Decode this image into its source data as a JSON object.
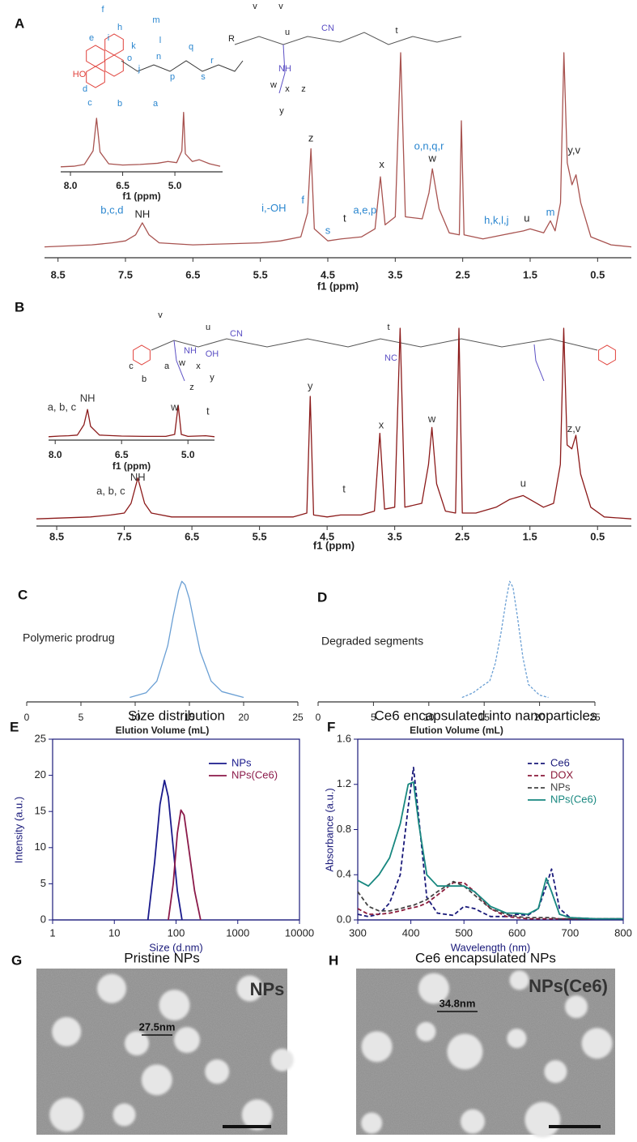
{
  "chart_data": [
    {
      "type": "line",
      "panel_label": "A",
      "xlabel": "f1 (ppm)",
      "color": "#a85350",
      "xlim": [
        8.7,
        0.0
      ],
      "xticks": [
        8.5,
        7.5,
        6.5,
        5.5,
        4.5,
        3.5,
        2.5,
        1.5,
        0.5
      ],
      "ylim": [
        0,
        100
      ],
      "x": [
        8.7,
        8.0,
        7.7,
        7.5,
        7.35,
        7.25,
        7.15,
        7.0,
        6.5,
        5.5,
        5.2,
        4.9,
        4.8,
        4.75,
        4.7,
        4.5,
        4.3,
        4.0,
        3.8,
        3.72,
        3.65,
        3.5,
        3.42,
        3.35,
        3.1,
        3.0,
        2.95,
        2.85,
        2.7,
        2.55,
        2.52,
        2.48,
        2.2,
        1.9,
        1.6,
        1.5,
        1.3,
        1.2,
        1.13,
        1.05,
        1.0,
        0.95,
        0.88,
        0.82,
        0.75,
        0.6,
        0.3,
        0.0
      ],
      "values": [
        3,
        4,
        5,
        6,
        9,
        15,
        9,
        5,
        4,
        5,
        6,
        8,
        20,
        52,
        12,
        6,
        7,
        8,
        12,
        38,
        14,
        18,
        100,
        18,
        17,
        30,
        42,
        22,
        10,
        9,
        66,
        9,
        7,
        9,
        11,
        12,
        10,
        16,
        11,
        25,
        100,
        45,
        34,
        39,
        25,
        8,
        4,
        3
      ],
      "annotations": [
        {
          "text": "b,c,d",
          "x": 7.7,
          "y": 21,
          "color": "#2a86cf"
        },
        {
          "text": "NH",
          "x": 7.25,
          "y": 19,
          "color": "#222222"
        },
        {
          "text": "i,-OH",
          "x": 5.3,
          "y": 22,
          "color": "#2a86cf"
        },
        {
          "text": "f",
          "x": 4.87,
          "y": 26,
          "color": "#2a86cf"
        },
        {
          "text": "s",
          "x": 4.5,
          "y": 11,
          "color": "#2a86cf"
        },
        {
          "text": "t",
          "x": 4.25,
          "y": 17,
          "color": "#222222"
        },
        {
          "text": "a,e,p",
          "x": 3.95,
          "y": 21,
          "color": "#2a86cf"
        },
        {
          "text": "z",
          "x": 4.75,
          "y": 57,
          "color": "#222222"
        },
        {
          "text": "x",
          "x": 3.7,
          "y": 44,
          "color": "#222222"
        },
        {
          "text": "o,n,q,r",
          "x": 3.0,
          "y": 53,
          "color": "#2a86cf"
        },
        {
          "text": "w",
          "x": 2.95,
          "y": 47,
          "color": "#222222"
        },
        {
          "text": "h,k,l,j",
          "x": 2.0,
          "y": 16,
          "color": "#2a86cf"
        },
        {
          "text": "u",
          "x": 1.55,
          "y": 17,
          "color": "#222222"
        },
        {
          "text": "m",
          "x": 1.2,
          "y": 20,
          "color": "#2a86cf"
        },
        {
          "text": "y,v",
          "x": 0.85,
          "y": 51,
          "color": "#222222"
        }
      ],
      "structure_labels": [
        {
          "text": "f",
          "color": "#2a86cf"
        },
        {
          "text": "h",
          "color": "#2a86cf"
        },
        {
          "text": "e",
          "color": "#2a86cf"
        },
        {
          "text": "i",
          "color": "#2a86cf"
        },
        {
          "text": "k",
          "color": "#2a86cf"
        },
        {
          "text": "l",
          "color": "#2a86cf"
        },
        {
          "text": "m",
          "color": "#2a86cf"
        },
        {
          "text": "n",
          "color": "#2a86cf"
        },
        {
          "text": "o",
          "color": "#2a86cf"
        },
        {
          "text": "j",
          "color": "#2a86cf"
        },
        {
          "text": "q",
          "color": "#2a86cf"
        },
        {
          "text": "p",
          "color": "#2a86cf"
        },
        {
          "text": "r",
          "color": "#2a86cf"
        },
        {
          "text": "s",
          "color": "#2a86cf"
        },
        {
          "text": "d",
          "color": "#2a86cf"
        },
        {
          "text": "c",
          "color": "#2a86cf"
        },
        {
          "text": "b",
          "color": "#2a86cf"
        },
        {
          "text": "a",
          "color": "#2a86cf"
        },
        {
          "text": "v",
          "color": "#222222"
        },
        {
          "text": "u",
          "color": "#222222"
        },
        {
          "text": "v",
          "color": "#222222"
        },
        {
          "text": "w",
          "color": "#222222"
        },
        {
          "text": "x",
          "color": "#222222"
        },
        {
          "text": "y",
          "color": "#222222"
        },
        {
          "text": "z",
          "color": "#222222"
        },
        {
          "text": "t",
          "color": "#222222"
        },
        {
          "text": "R",
          "color": "#222222"
        },
        {
          "text": "CN",
          "color": "#5b4fc4"
        },
        {
          "text": "NH",
          "color": "#5b4fc4"
        },
        {
          "text": "HO",
          "color": "#e0403a"
        }
      ]
    },
    {
      "type": "line",
      "xlabel": "f1 (ppm)",
      "color": "#a85350",
      "xlim": [
        8.28,
        3.63
      ],
      "xticks": [
        {
          "value": 8,
          "label": "8.0"
        },
        6.5,
        {
          "value": 5,
          "label": "5.0"
        }
      ],
      "ylim": [
        0,
        100
      ],
      "x": [
        8.28,
        7.9,
        7.6,
        7.35,
        7.25,
        7.15,
        6.9,
        6.5,
        6.0,
        5.5,
        5.2,
        4.95,
        4.8,
        4.75,
        4.7,
        4.5,
        4.3,
        4.0,
        3.7
      ],
      "values": [
        3,
        4,
        7,
        30,
        85,
        28,
        8,
        6,
        7,
        9,
        12,
        10,
        30,
        95,
        25,
        12,
        15,
        8,
        4
      ]
    },
    {
      "type": "line",
      "panel_label": "B",
      "xlabel": "f1 (ppm)",
      "color": "#8b1a1a",
      "xlim": [
        8.8,
        0.0
      ],
      "xticks": [
        8.5,
        7.5,
        6.5,
        5.5,
        4.5,
        3.5,
        2.5,
        1.5,
        0.5
      ],
      "ylim": [
        0,
        100
      ],
      "x": [
        8.8,
        8.0,
        7.7,
        7.5,
        7.4,
        7.3,
        7.2,
        7.1,
        6.8,
        6,
        5.5,
        5,
        4.8,
        4.75,
        4.7,
        4.5,
        4.3,
        4.0,
        3.8,
        3.72,
        3.65,
        3.5,
        3.42,
        3.35,
        3.1,
        3.0,
        2.95,
        2.88,
        2.75,
        2.6,
        2.55,
        2.5,
        2.3,
        2.0,
        1.8,
        1.6,
        1.45,
        1.3,
        1.15,
        1.05,
        1.0,
        0.95,
        0.88,
        0.82,
        0.75,
        0.6,
        0.4,
        0.0
      ],
      "values": [
        2,
        3,
        4,
        5,
        10,
        23,
        10,
        5,
        3,
        3,
        3,
        3,
        5,
        65,
        4,
        3,
        4,
        4,
        6,
        46,
        7,
        8,
        100,
        8,
        10,
        30,
        49,
        20,
        6,
        5,
        100,
        5,
        5,
        8,
        12,
        14,
        11,
        8,
        10,
        30,
        100,
        40,
        38,
        45,
        25,
        8,
        3,
        2
      ],
      "annotations": [
        {
          "text": "a, b, c",
          "x": 7.7,
          "y": 16,
          "color": "#333333"
        },
        {
          "text": "NH",
          "x": 7.3,
          "y": 23,
          "color": "#333333"
        },
        {
          "text": "y",
          "x": 4.75,
          "y": 70,
          "color": "#333333"
        },
        {
          "text": "t",
          "x": 4.25,
          "y": 17,
          "color": "#333333"
        },
        {
          "text": "x",
          "x": 3.7,
          "y": 50,
          "color": "#333333"
        },
        {
          "text": "w",
          "x": 2.95,
          "y": 53,
          "color": "#333333"
        },
        {
          "text": "u",
          "x": 1.6,
          "y": 20,
          "color": "#333333"
        },
        {
          "text": "z,v",
          "x": 0.85,
          "y": 48,
          "color": "#333333"
        }
      ],
      "structure_labels": [
        {
          "text": "c",
          "color": "#222222"
        },
        {
          "text": "b",
          "color": "#222222"
        },
        {
          "text": "a",
          "color": "#222222"
        },
        {
          "text": "v",
          "color": "#222222"
        },
        {
          "text": "u",
          "color": "#222222"
        },
        {
          "text": "t",
          "color": "#222222"
        },
        {
          "text": "w",
          "color": "#222222"
        },
        {
          "text": "x",
          "color": "#222222"
        },
        {
          "text": "y",
          "color": "#222222"
        },
        {
          "text": "z",
          "color": "#222222"
        },
        {
          "text": "NH",
          "color": "#5b4fc4"
        },
        {
          "text": "CN",
          "color": "#5b4fc4"
        },
        {
          "text": "NC",
          "color": "#5b4fc4"
        },
        {
          "text": "OH",
          "color": "#5b4fc4"
        }
      ]
    },
    {
      "type": "line",
      "xlabel": "f1 (ppm)",
      "color": "#8b1a1a",
      "xlim": [
        8.15,
        4.4
      ],
      "xticks": [
        {
          "value": 8,
          "label": "8.0"
        },
        6.5,
        {
          "value": 5,
          "label": "5.0"
        }
      ],
      "ylim": [
        0,
        100
      ],
      "x": [
        8.15,
        7.9,
        7.7,
        7.5,
        7.35,
        7.27,
        7.2,
        7.0,
        6.5,
        6.0,
        5.5,
        5.3,
        5.22,
        5.15,
        5.0,
        4.8,
        4.6,
        4.4
      ],
      "values": [
        3,
        5,
        6,
        8,
        40,
        87,
        35,
        8,
        5,
        4,
        4,
        10,
        100,
        10,
        4,
        5,
        6,
        3
      ],
      "annotations": [
        {
          "text": "NH",
          "x": 7.27,
          "y": 120,
          "color": "#333333"
        },
        {
          "text": "a, b, c",
          "x": 7.85,
          "y": 92,
          "color": "#333333"
        },
        {
          "text": "w",
          "x": 5.3,
          "y": 92,
          "color": "#333333"
        },
        {
          "text": "t",
          "x": 4.55,
          "y": 80,
          "color": "#333333"
        }
      ]
    },
    {
      "type": "line",
      "panel_label": "C",
      "label": "Polymeric prodrug",
      "xlabel": "Elution Volume (mL)",
      "color": "#6a9fd4",
      "xlim": [
        0,
        25
      ],
      "xticks": [
        0,
        5,
        10,
        15,
        20,
        25
      ],
      "ylim": [
        0,
        105
      ],
      "x": [
        9.5,
        11,
        12,
        13,
        13.5,
        14,
        14.3,
        14.6,
        15,
        15.5,
        16,
        17,
        18,
        20
      ],
      "values": [
        1,
        5,
        15,
        45,
        70,
        92,
        100,
        97,
        85,
        62,
        40,
        15,
        6,
        1
      ]
    },
    {
      "type": "line",
      "panel_label": "D",
      "label": "Degraded segments",
      "xlabel": "Elution Volume (mL)",
      "color": "#6a9fd4",
      "line_style": "dashed",
      "xlim": [
        0,
        25
      ],
      "xticks": [
        0,
        5,
        10,
        15,
        20,
        25
      ],
      "ylim": [
        0,
        105
      ],
      "x": [
        13,
        14,
        15,
        15.5,
        16,
        16.5,
        17,
        17.3,
        17.6,
        18,
        18.5,
        19,
        20,
        20.8
      ],
      "values": [
        1,
        5,
        12,
        15,
        30,
        55,
        85,
        100,
        95,
        70,
        35,
        12,
        3,
        1
      ]
    },
    {
      "type": "line",
      "panel_label": "E",
      "title": "Size distribution",
      "xlabel": "Size (d.nm)",
      "ylabel": "Intensity (a.u.)",
      "xlog": true,
      "frame": true,
      "legend": "upper right",
      "xlim": [
        1,
        10000
      ],
      "xticks": [
        1,
        10,
        100,
        1000,
        10000
      ],
      "ylim": [
        0,
        25
      ],
      "yticks": [
        0,
        5,
        10,
        15,
        20,
        25
      ],
      "series": [
        {
          "name": "NPs",
          "color": "#1a1a8c",
          "x": [
            35,
            45,
            55,
            65,
            75,
            90,
            105,
            125
          ],
          "values": [
            0,
            8,
            16,
            19.3,
            17,
            10,
            4,
            0
          ]
        },
        {
          "name": "NPs(Ce6)",
          "color": "#8b1a4a",
          "x": [
            75,
            90,
            105,
            120,
            135,
            160,
            200,
            250
          ],
          "values": [
            0,
            5,
            12,
            15.2,
            14.5,
            10,
            4,
            0
          ]
        }
      ]
    },
    {
      "type": "line",
      "panel_label": "F",
      "title": "Ce6 encapsulated into nanoparticles",
      "xlabel": "Wavelength (nm)",
      "ylabel": "Absorbance (a.u.)",
      "frame": true,
      "legend": "upper right",
      "xlim": [
        300,
        800
      ],
      "xticks": [
        300,
        400,
        500,
        600,
        700,
        800
      ],
      "ylim": [
        0,
        1.6
      ],
      "yticks": [
        {
          "value": 0,
          "label": "0.0"
        },
        0.4,
        0.8,
        1.2,
        1.6
      ],
      "x": [
        300,
        320,
        340,
        360,
        380,
        395,
        405,
        415,
        430,
        450,
        480,
        500,
        520,
        550,
        580,
        600,
        620,
        640,
        655,
        665,
        680,
        700,
        750,
        800
      ],
      "series": [
        {
          "name": "Ce6",
          "color": "#1a1a7a",
          "line_style": "dashed",
          "values": [
            0.05,
            0.03,
            0.05,
            0.15,
            0.4,
            1.0,
            1.35,
            0.9,
            0.2,
            0.06,
            0.04,
            0.12,
            0.1,
            0.03,
            0.03,
            0.05,
            0.04,
            0.1,
            0.3,
            0.45,
            0.1,
            0.02,
            0.01,
            0.01
          ]
        },
        {
          "name": "DOX",
          "color": "#8b1a3a",
          "line_style": "dashed",
          "values": [
            0.1,
            0.05,
            0.05,
            0.06,
            0.08,
            0.1,
            0.11,
            0.12,
            0.15,
            0.22,
            0.33,
            0.33,
            0.25,
            0.1,
            0.03,
            0.02,
            0.01,
            0.01,
            0.01,
            0.01,
            0.01,
            0.01,
            0.01,
            0.01
          ]
        },
        {
          "name": "NPs",
          "color": "#444444",
          "line_style": "dashed",
          "values": [
            0.25,
            0.12,
            0.08,
            0.08,
            0.1,
            0.12,
            0.13,
            0.15,
            0.18,
            0.25,
            0.34,
            0.3,
            0.22,
            0.1,
            0.05,
            0.03,
            0.02,
            0.02,
            0.02,
            0.02,
            0.01,
            0.01,
            0.01,
            0.01
          ]
        },
        {
          "name": "NPs(Ce6)",
          "color": "#17877f",
          "values": [
            0.35,
            0.3,
            0.4,
            0.55,
            0.85,
            1.2,
            1.22,
            0.85,
            0.4,
            0.3,
            0.3,
            0.3,
            0.25,
            0.12,
            0.06,
            0.06,
            0.05,
            0.1,
            0.37,
            0.25,
            0.05,
            0.02,
            0.01,
            0.01
          ]
        }
      ]
    },
    {
      "type": "image",
      "panel_label": "G",
      "title": "Pristine NPs",
      "label": "NPs",
      "scale_label": "27.5nm"
    },
    {
      "type": "image",
      "panel_label": "H",
      "title": "Ce6 encapsulated NPs",
      "label": "NPs(Ce6)",
      "scale_label": "34.8nm"
    }
  ]
}
